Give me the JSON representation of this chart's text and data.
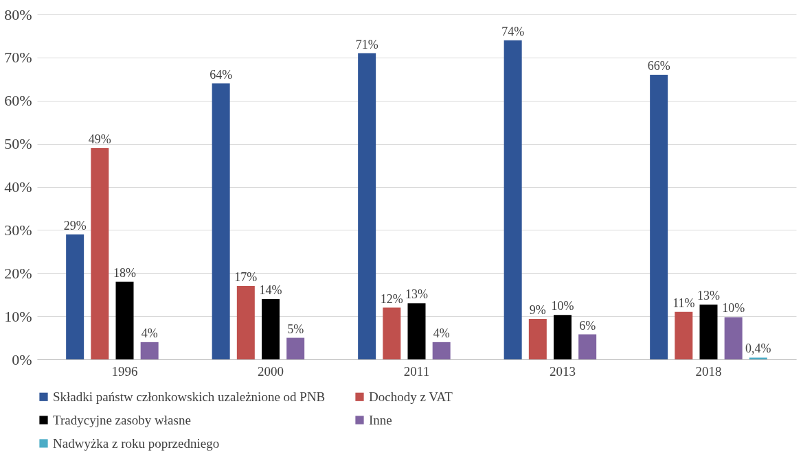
{
  "chart_data": {
    "type": "bar",
    "categories": [
      "1996",
      "2000",
      "2011",
      "2013",
      "2018"
    ],
    "series": [
      {
        "name": "Składki państw członkowskich uzależnione od PNB",
        "color": "#2f5597",
        "values": [
          29,
          64,
          71,
          74,
          66
        ],
        "value_labels": [
          "29%",
          "64%",
          "71%",
          "74%",
          "66%"
        ]
      },
      {
        "name": "Dochody z VAT",
        "color": "#c0504d",
        "values": [
          49,
          17,
          12,
          9.4,
          11
        ],
        "value_labels": [
          "49%",
          "17%",
          "12%",
          "9%",
          "11%"
        ]
      },
      {
        "name": "Tradycyjne zasoby własne",
        "color": "#000000",
        "values": [
          18,
          14,
          13,
          10.3,
          12.7
        ],
        "value_labels": [
          "18%",
          "14%",
          "13%",
          "10%",
          "13%"
        ]
      },
      {
        "name": "Inne",
        "color": "#8064a2",
        "values": [
          4,
          5,
          4,
          5.8,
          9.8
        ],
        "value_labels": [
          "4%",
          "5%",
          "4%",
          "6%",
          "10%"
        ]
      },
      {
        "name": "Nadwyżka z roku poprzedniego",
        "color": "#4bacc6",
        "values": [
          null,
          null,
          null,
          null,
          0.4
        ],
        "value_labels": [
          null,
          null,
          null,
          null,
          "0,4%"
        ]
      }
    ],
    "ylim": [
      0,
      80
    ],
    "yticks": [
      {
        "value": 0,
        "label": "0%"
      },
      {
        "value": 10,
        "label": "10%"
      },
      {
        "value": 20,
        "label": "20%"
      },
      {
        "value": 30,
        "label": "30%"
      },
      {
        "value": 40,
        "label": "40%"
      },
      {
        "value": 50,
        "label": "50%"
      },
      {
        "value": 60,
        "label": "60%"
      },
      {
        "value": 70,
        "label": "70%"
      },
      {
        "value": 80,
        "label": "80%"
      }
    ],
    "grid": "y",
    "legend": "bottom"
  }
}
